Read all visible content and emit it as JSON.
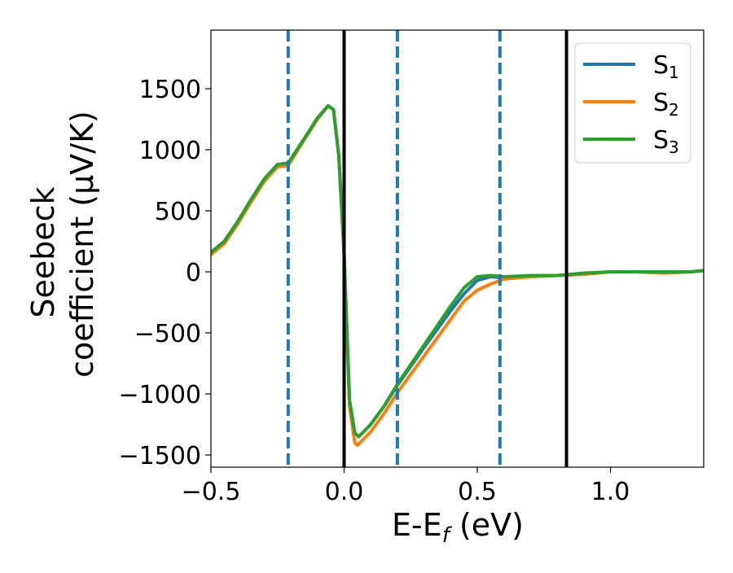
{
  "chart_data": {
    "type": "line",
    "title": "",
    "xlabel": "E-E",
    "xlabel_sub": "f",
    "xlabel_unit": " (eV)",
    "ylabel_line1": "Seebeck",
    "ylabel_line2": "coefficient  (μV/K)",
    "xlim": [
      -0.5,
      1.35
    ],
    "ylim": [
      -1600,
      1980
    ],
    "xticks": [
      -0.5,
      0.0,
      0.5,
      1.0
    ],
    "xtick_labels": [
      "−0.5",
      "0.0",
      "0.5",
      "1.0"
    ],
    "yticks": [
      -1500,
      -1000,
      -500,
      0,
      500,
      1000,
      1500
    ],
    "ytick_labels": [
      "−1500",
      "−1000",
      "−500",
      "0",
      "500",
      "1000",
      "1500"
    ],
    "legend_position": "top-right",
    "grid": false,
    "vlines": [
      {
        "x": -0.21,
        "style": "dashed",
        "color": "#1f77b4"
      },
      {
        "x": 0.0,
        "style": "solid",
        "color": "#000000"
      },
      {
        "x": 0.2,
        "style": "dashed",
        "color": "#1f77b4"
      },
      {
        "x": 0.585,
        "style": "dashed",
        "color": "#1f77b4"
      },
      {
        "x": 0.835,
        "style": "solid",
        "color": "#000000"
      }
    ],
    "series": [
      {
        "name": "S",
        "sub": "1",
        "color": "#1f77b4",
        "x": [
          -0.5,
          -0.45,
          -0.4,
          -0.35,
          -0.3,
          -0.25,
          -0.21,
          -0.15,
          -0.1,
          -0.06,
          -0.04,
          -0.02,
          0.0,
          0.02,
          0.04,
          0.055,
          0.1,
          0.15,
          0.2,
          0.3,
          0.4,
          0.45,
          0.5,
          0.55,
          0.6,
          0.7,
          0.8,
          0.9,
          1.0,
          1.1,
          1.2,
          1.3,
          1.35
        ],
        "y": [
          160,
          250,
          410,
          590,
          760,
          880,
          890,
          1090,
          1260,
          1360,
          1330,
          950,
          150,
          -1050,
          -1320,
          -1350,
          -1250,
          -1100,
          -930,
          -620,
          -320,
          -180,
          -70,
          -40,
          -50,
          -40,
          -30,
          -20,
          0,
          0,
          -10,
          0,
          10
        ]
      },
      {
        "name": "S",
        "sub": "2",
        "color": "#ff7f0e",
        "x": [
          -0.5,
          -0.45,
          -0.4,
          -0.35,
          -0.3,
          -0.25,
          -0.21,
          -0.15,
          -0.1,
          -0.06,
          -0.04,
          -0.02,
          0.0,
          0.02,
          0.04,
          0.05,
          0.1,
          0.15,
          0.2,
          0.3,
          0.4,
          0.45,
          0.5,
          0.55,
          0.6,
          0.7,
          0.8,
          0.9,
          1.0,
          1.1,
          1.2,
          1.3,
          1.35
        ],
        "y": [
          140,
          230,
          390,
          570,
          740,
          860,
          870,
          1080,
          1250,
          1360,
          1330,
          960,
          120,
          -1100,
          -1400,
          -1420,
          -1310,
          -1160,
          -990,
          -690,
          -390,
          -240,
          -150,
          -100,
          -60,
          -40,
          -30,
          -20,
          0,
          0,
          -10,
          0,
          10
        ]
      },
      {
        "name": "S",
        "sub": "3",
        "color": "#2ca02c",
        "x": [
          -0.5,
          -0.45,
          -0.4,
          -0.35,
          -0.3,
          -0.25,
          -0.21,
          -0.15,
          -0.1,
          -0.06,
          -0.04,
          -0.02,
          0.0,
          0.02,
          0.04,
          0.055,
          0.1,
          0.15,
          0.2,
          0.3,
          0.4,
          0.45,
          0.5,
          0.55,
          0.6,
          0.7,
          0.8,
          0.9,
          1.0,
          1.1,
          1.2,
          1.3,
          1.35
        ],
        "y": [
          160,
          250,
          410,
          590,
          760,
          880,
          890,
          1090,
          1260,
          1360,
          1330,
          950,
          150,
          -1050,
          -1320,
          -1350,
          -1250,
          -1100,
          -920,
          -600,
          -280,
          -130,
          -40,
          -30,
          -40,
          -30,
          -30,
          -10,
          0,
          0,
          0,
          0,
          10
        ]
      }
    ]
  }
}
